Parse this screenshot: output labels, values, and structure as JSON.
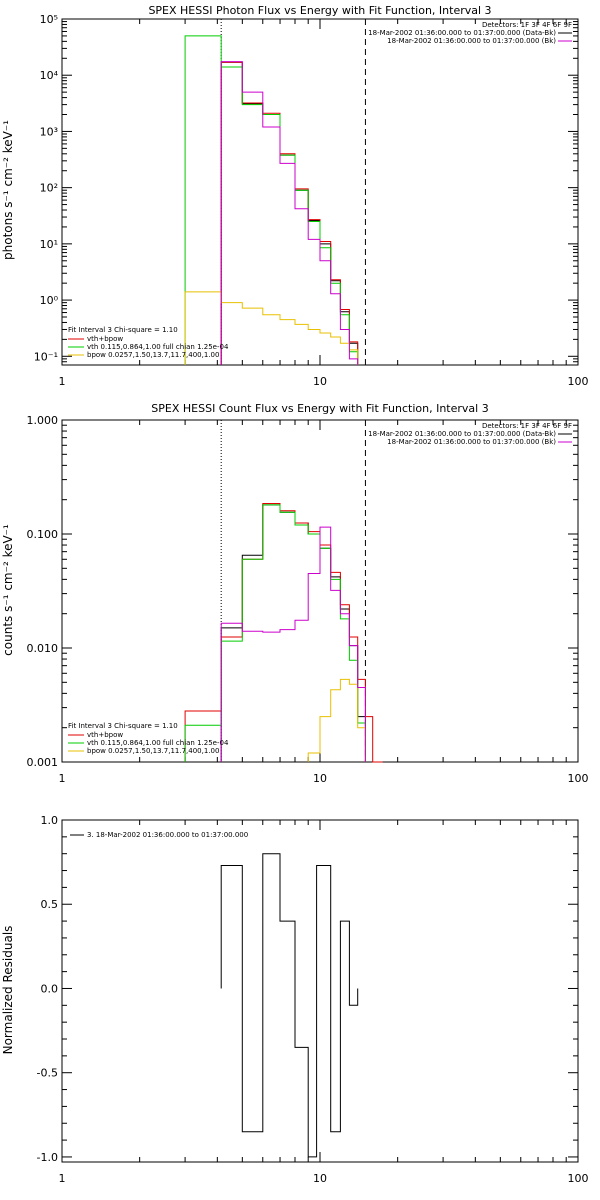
{
  "colors": {
    "data": "#000000",
    "total": "#e00000",
    "vth": "#00cc00",
    "bpow": "#e8c000",
    "background": "#cc00cc"
  },
  "chart_data": [
    {
      "type": "line",
      "scale": "log-log",
      "title": "SPEX HESSI Photon Flux vs Energy with Fit Function, Interval 3",
      "ylabel": "photons s⁻¹ cm⁻² keV⁻¹",
      "xlabel": "",
      "xlim": [
        1,
        100
      ],
      "ylim": [
        0.07,
        100000
      ],
      "xticks": [
        "1",
        "10",
        "100"
      ],
      "yticks": [
        "10⁻¹",
        "10⁰",
        "10¹",
        "10²",
        "10³",
        "10⁴",
        "10⁵"
      ],
      "vlines": {
        "dotted": 4.14,
        "dashed": 15.0
      },
      "top_legend": [
        "Detectors: 1F 3F 4F 6F 9F",
        "18-Mar-2002 01:36:00.000 to 01:37:00.000 (Data-Bk)",
        "18-Mar-2002 01:36:00.000 to 01:37:00.000 (Bk)"
      ],
      "fit_legend": {
        "header": "Fit Interval 3   Chi-square = 1.10",
        "entries": [
          "vth+bpow",
          "vth 0.115,0.864,1.00  full chian 1.25e-04",
          "bpow 0.0257,1.50,13.7,11.7,400,1.00"
        ]
      },
      "edges": [
        3.0,
        4.14,
        5.0,
        6.0,
        7.0,
        8.0,
        9.0,
        10.0,
        11.0,
        12.0,
        13.0,
        14.0,
        15.0
      ],
      "series": [
        {
          "name": "Data-Bk",
          "color": "data",
          "values": [
            null,
            17000,
            3100,
            2000,
            380,
            90,
            26,
            10,
            2.2,
            0.62,
            0.17,
            null
          ]
        },
        {
          "name": "vth+bpow",
          "color": "total",
          "values": [
            null,
            17000,
            3200,
            2100,
            400,
            95,
            27,
            11,
            2.3,
            0.68,
            0.18,
            null
          ]
        },
        {
          "name": "vth",
          "color": "vth",
          "values": [
            50000,
            14000,
            3000,
            2000,
            380,
            90,
            25,
            8.5,
            2.0,
            0.55,
            0.12,
            null
          ]
        },
        {
          "name": "bpow",
          "color": "bpow",
          "values": [
            1.4,
            0.9,
            0.72,
            0.55,
            0.45,
            0.37,
            0.3,
            0.26,
            0.22,
            0.17,
            0.13,
            null
          ]
        },
        {
          "name": "Bk",
          "color": "background",
          "values": [
            null,
            17500,
            5000,
            1200,
            270,
            42,
            12,
            5,
            1.3,
            0.3,
            0.09,
            null
          ]
        }
      ]
    },
    {
      "type": "line",
      "scale": "log-log",
      "title": "SPEX HESSI Count Flux vs Energy with Fit Function, Interval 3",
      "ylabel": "counts s⁻¹ cm⁻² keV⁻¹",
      "xlabel": "",
      "xlim": [
        1,
        100
      ],
      "ylim": [
        0.001,
        1.0
      ],
      "xticks": [
        "1",
        "10",
        "100"
      ],
      "yticks": [
        "0.001",
        "0.010",
        "0.100",
        "1.000"
      ],
      "vlines": {
        "dotted": 4.14,
        "dashed": 15.0
      },
      "top_legend": [
        "Detectors: 1F 3F 4F 6F 9F",
        "18-Mar-2002 01:36:00.000 to 01:37:00.000 (Data-Bk)",
        "18-Mar-2002 01:36:00.000 to 01:37:00.000 (Bk)"
      ],
      "fit_legend": {
        "header": "Fit Interval 3   Chi-square = 1.10",
        "entries": [
          "vth+bpow",
          "vth 0.115,0.864,1.00  full chian 1.25e-04",
          "bpow 0.0257,1.50,13.7,11.7,400,1.00"
        ]
      },
      "edges": [
        3.0,
        4.14,
        5.0,
        6.0,
        7.0,
        8.0,
        9.0,
        10.0,
        11.0,
        12.0,
        13.0,
        14.0,
        15.0,
        16.0,
        17.5
      ],
      "series": [
        {
          "name": "Data-Bk",
          "color": "data",
          "values": [
            null,
            0.015,
            0.065,
            0.18,
            0.155,
            0.125,
            0.1,
            0.075,
            0.042,
            0.022,
            0.0105,
            0.0025,
            null,
            null
          ]
        },
        {
          "name": "vth+bpow",
          "color": "total",
          "values": [
            0.0028,
            0.0125,
            0.06,
            0.185,
            0.16,
            0.125,
            0.105,
            0.08,
            0.046,
            0.024,
            0.0125,
            0.0053,
            0.0025,
            0.001
          ]
        },
        {
          "name": "vth",
          "color": "vth",
          "values": [
            0.0021,
            0.0115,
            0.06,
            0.18,
            0.155,
            0.12,
            0.1,
            0.075,
            0.04,
            0.018,
            0.0078,
            0.0022,
            null,
            null
          ]
        },
        {
          "name": "bpow",
          "color": "bpow",
          "values": [
            null,
            null,
            null,
            null,
            null,
            null,
            0.0012,
            0.0025,
            0.0043,
            0.0053,
            0.0048,
            0.002,
            null,
            null
          ]
        },
        {
          "name": "Bk",
          "color": "background",
          "values": [
            null,
            0.0165,
            0.014,
            0.0138,
            0.0145,
            0.0175,
            0.045,
            0.115,
            0.032,
            0.02,
            0.0105,
            0.0045,
            null,
            null
          ]
        }
      ]
    },
    {
      "type": "line",
      "scale": "log-linear",
      "title": "",
      "ylabel": "Normalized Residuals",
      "xlabel": "",
      "xlim": [
        1,
        100
      ],
      "ylim": [
        -1.03,
        1.0
      ],
      "xticks": [
        "1",
        "10",
        "100"
      ],
      "yticks": [
        "-1.0",
        "-0.5",
        "0.0",
        "0.5",
        "1.0"
      ],
      "legend": "3. 18-Mar-2002 01:36:00.000 to 01:37:00.000",
      "edges": [
        4.14,
        5.0,
        6.0,
        7.0,
        8.0,
        9.0,
        9.7,
        11.0,
        12.0,
        13.0,
        14.0,
        15.0
      ],
      "series": [
        {
          "name": "3. 18-Mar-2002 01:36:00.000 to 01:37:00.000",
          "color": "data",
          "values": [
            0.73,
            -0.85,
            0.8,
            0.4,
            -0.35,
            -1.0,
            0.73,
            -0.85,
            0.4,
            -0.1,
            null
          ]
        }
      ]
    }
  ]
}
